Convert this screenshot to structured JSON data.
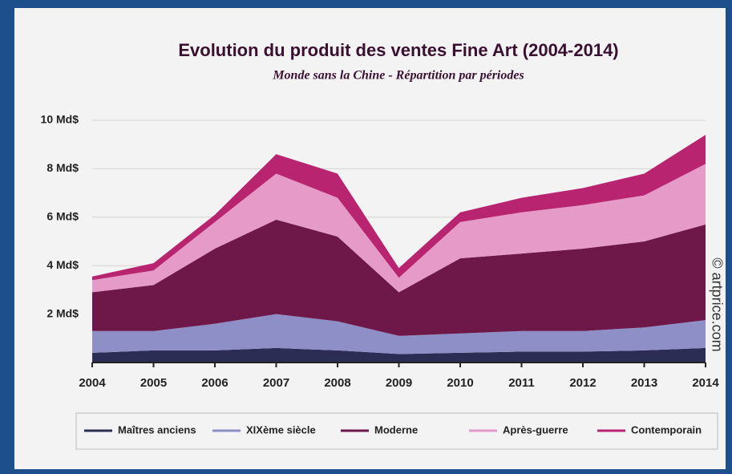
{
  "chart_data": {
    "type": "stacked_area",
    "title": "Evolution du produit des ventes Fine Art (2004-2014)",
    "subtitle": "Monde sans la Chine - Répartition par périodes",
    "credit": "© artprice.com",
    "categories": [
      "2004",
      "2005",
      "2006",
      "2007",
      "2008",
      "2009",
      "2010",
      "2011",
      "2012",
      "2013",
      "2014"
    ],
    "series": [
      {
        "name": "Maîtres anciens",
        "color": "#2b2d55",
        "values": [
          0.4,
          0.5,
          0.5,
          0.6,
          0.5,
          0.35,
          0.4,
          0.45,
          0.45,
          0.5,
          0.6
        ]
      },
      {
        "name": "XIXème siècle",
        "color": "#8f8fc8",
        "values": [
          0.9,
          0.8,
          1.1,
          1.4,
          1.2,
          0.75,
          0.8,
          0.85,
          0.85,
          0.95,
          1.15
        ]
      },
      {
        "name": "Moderne",
        "color": "#6d1848",
        "values": [
          1.6,
          1.9,
          3.1,
          3.9,
          3.5,
          1.8,
          3.1,
          3.2,
          3.4,
          3.55,
          3.95
        ]
      },
      {
        "name": "Après-guerre",
        "color": "#e59ac8",
        "values": [
          0.5,
          0.6,
          1.1,
          1.9,
          1.6,
          0.6,
          1.5,
          1.7,
          1.8,
          1.9,
          2.5
        ]
      },
      {
        "name": "Contemporain",
        "color": "#b8246f",
        "values": [
          0.15,
          0.3,
          0.3,
          0.8,
          1.0,
          0.4,
          0.4,
          0.6,
          0.7,
          0.9,
          1.2
        ]
      }
    ],
    "ylim": [
      0,
      10
    ],
    "yticks": [
      {
        "value": 2,
        "label": "2 Md$"
      },
      {
        "value": 4,
        "label": "4 Md$"
      },
      {
        "value": 6,
        "label": "6 Md$"
      },
      {
        "value": 8,
        "label": "8 Md$"
      },
      {
        "value": 10,
        "label": "10 Md$"
      }
    ],
    "grid": true,
    "legend": "bottom"
  }
}
